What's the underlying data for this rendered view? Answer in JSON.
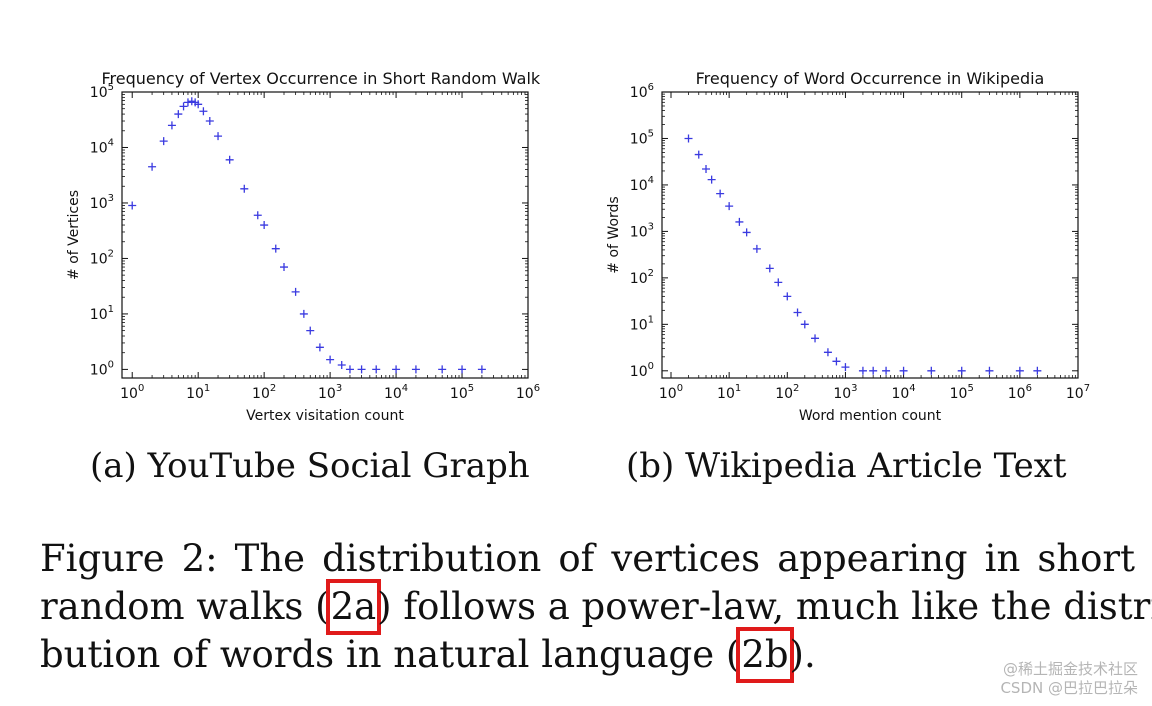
{
  "chart_data": [
    {
      "type": "scatter",
      "title": "Frequency of Vertex Occurrence in Short Random Walks",
      "xlabel": "Vertex visitation count",
      "ylabel": "# of Vertices",
      "xscale": "log",
      "yscale": "log",
      "xlim": [
        0.7,
        1000000
      ],
      "ylim": [
        0.7,
        100000
      ],
      "xticks": [
        "10^0",
        "10^1",
        "10^2",
        "10^3",
        "10^4",
        "10^5",
        "10^6"
      ],
      "yticks": [
        "10^0",
        "10^1",
        "10^2",
        "10^3",
        "10^4",
        "10^5"
      ],
      "marker": "+",
      "color": "#3a3ae0",
      "grid": false,
      "x": [
        1,
        2,
        3,
        4,
        5,
        6,
        7,
        8,
        9,
        10,
        12,
        15,
        20,
        30,
        50,
        80,
        100,
        150,
        200,
        300,
        400,
        500,
        700,
        1000,
        1500,
        2000,
        3000,
        5000,
        10000,
        20000,
        50000,
        100000,
        200000
      ],
      "y": [
        900,
        4500,
        13000,
        25000,
        40000,
        55000,
        65000,
        68000,
        65000,
        60000,
        45000,
        30000,
        16000,
        6000,
        1800,
        600,
        400,
        150,
        70,
        25,
        10,
        5,
        2.5,
        1.5,
        1.2,
        1,
        1,
        1,
        1,
        1,
        1,
        1,
        1
      ]
    },
    {
      "type": "scatter",
      "title": "Frequency of Word Occurrence in Wikipedia",
      "xlabel": "Word mention count",
      "ylabel": "# of Words",
      "xscale": "log",
      "yscale": "log",
      "xlim": [
        0.7,
        10000000
      ],
      "ylim": [
        0.7,
        1000000
      ],
      "xticks": [
        "10^0",
        "10^1",
        "10^2",
        "10^3",
        "10^4",
        "10^5",
        "10^6",
        "10^7"
      ],
      "yticks": [
        "10^0",
        "10^1",
        "10^2",
        "10^3",
        "10^4",
        "10^5",
        "10^6"
      ],
      "marker": "+",
      "color": "#3a3ae0",
      "grid": false,
      "x": [
        2,
        3,
        4,
        5,
        7,
        10,
        15,
        20,
        30,
        50,
        70,
        100,
        150,
        200,
        300,
        500,
        700,
        1000,
        2000,
        3000,
        5000,
        10000,
        30000,
        100000,
        300000,
        1000000,
        2000000
      ],
      "y": [
        100000,
        45000,
        22000,
        13000,
        6500,
        3500,
        1600,
        950,
        420,
        160,
        80,
        40,
        18,
        10,
        5,
        2.5,
        1.6,
        1.2,
        1,
        1,
        1,
        1,
        1,
        1,
        1,
        1,
        1
      ]
    }
  ],
  "subcaptions": {
    "a": "(a) YouTube Social Graph",
    "b": "(b) Wikipedia Article Text"
  },
  "caption": {
    "line1": "Figure 2: The distribution of vertices appearing in short",
    "line2_pre": "random walks (",
    "line2_ref": "2a",
    "line2_post": ") follows a power-law, much like the distri-",
    "line3_pre": "bution of words in natural language (",
    "line3_ref": "2b",
    "line3_post": ")."
  },
  "watermark": {
    "line1": "@稀土掘金技术社区",
    "line2": "CSDN @巴拉巴拉朵"
  },
  "colors": {
    "highlight_box": "#e01a1a",
    "marker": "#3a3ae0"
  }
}
